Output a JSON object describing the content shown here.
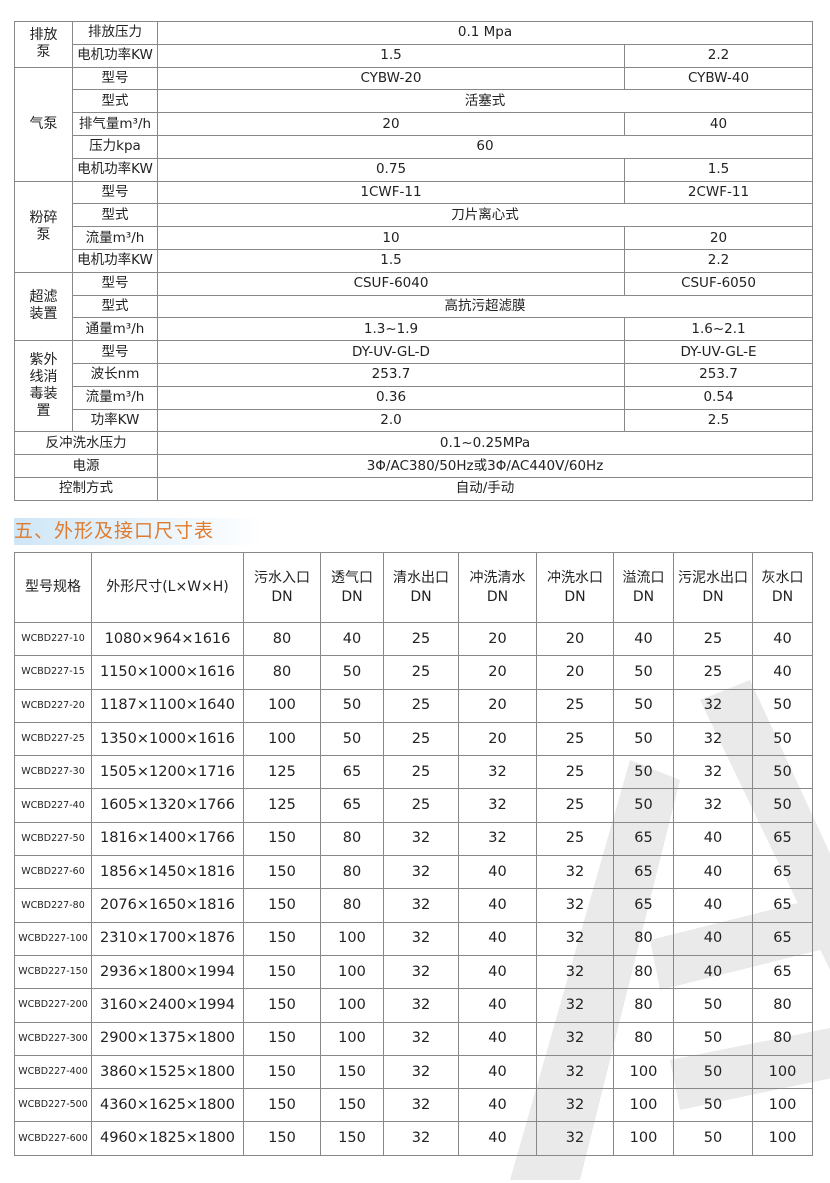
{
  "spec_table": {
    "rows": [
      {
        "group": "排放泵",
        "param": "排放压力",
        "merged": "0.1 Mpa"
      },
      {
        "param": "电机功率KW",
        "a": "1.5",
        "b": "2.2"
      },
      {
        "group": "气泵",
        "param": "型号",
        "a": "CYBW-20",
        "b": "CYBW-40"
      },
      {
        "param": "型式",
        "merged": "活塞式"
      },
      {
        "param": "排气量m³/h",
        "a": "20",
        "b": "40"
      },
      {
        "param": "压力kpa",
        "merged": "60"
      },
      {
        "param": "电机功率KW",
        "a": "0.75",
        "b": "1.5"
      },
      {
        "group": "粉碎泵",
        "param": "型号",
        "a": "1CWF-11",
        "b": "2CWF-11"
      },
      {
        "param": "型式",
        "merged": "刀片离心式"
      },
      {
        "param": "流量m³/h",
        "a": "10",
        "b": "20"
      },
      {
        "param": "电机功率KW",
        "a": "1.5",
        "b": "2.2"
      },
      {
        "group": "超滤装置",
        "param": "型号",
        "a": "CSUF-6040",
        "b": "CSUF-6050"
      },
      {
        "param": "型式",
        "merged": "高抗污超滤膜"
      },
      {
        "param": "通量m³/h",
        "a": "1.3~1.9",
        "b": "1.6~2.1"
      },
      {
        "group": "紫外线消毒装置",
        "param": "型号",
        "a": "DY-UV-GL-D",
        "b": "DY-UV-GL-E"
      },
      {
        "param": "波长nm",
        "a": "253.7",
        "b": "253.7"
      },
      {
        "param": "流量m³/h",
        "a": "0.36",
        "b": "0.54"
      },
      {
        "param": "功率KW",
        "a": "2.0",
        "b": "2.5"
      }
    ],
    "groups": {
      "排放泵": 2,
      "气泵": 5,
      "粉碎泵": 4,
      "超滤装置": 3,
      "紫外线消毒装置": 4
    },
    "footer_rows": [
      {
        "label": "反冲洗水压力",
        "value": "0.1~0.25MPa"
      },
      {
        "label": "电源",
        "value": "3Φ/AC380/50Hz或3Φ/AC440V/60Hz"
      },
      {
        "label": "控制方式",
        "value": "自动/手动"
      }
    ]
  },
  "section_title": "五、外形及接口尺寸表",
  "dims_table": {
    "headers": [
      [
        "型号规格"
      ],
      [
        "外形尺寸(L×W×H)"
      ],
      [
        "污水入口",
        "DN"
      ],
      [
        "透气口",
        "DN"
      ],
      [
        "清水出口",
        "DN"
      ],
      [
        "冲洗清水",
        "DN"
      ],
      [
        "冲洗水口",
        "DN"
      ],
      [
        "溢流口",
        "DN"
      ],
      [
        "污泥水出口",
        "DN"
      ],
      [
        "灰水口",
        "DN"
      ]
    ],
    "rows": [
      [
        "WCBD227-10",
        "1080×964×1616",
        "80",
        "40",
        "25",
        "20",
        "20",
        "40",
        "25",
        "40"
      ],
      [
        "WCBD227-15",
        "1150×1000×1616",
        "80",
        "50",
        "25",
        "20",
        "20",
        "50",
        "25",
        "40"
      ],
      [
        "WCBD227-20",
        "1187×1100×1640",
        "100",
        "50",
        "25",
        "20",
        "25",
        "50",
        "32",
        "50"
      ],
      [
        "WCBD227-25",
        "1350×1000×1616",
        "100",
        "50",
        "25",
        "20",
        "25",
        "50",
        "32",
        "50"
      ],
      [
        "WCBD227-30",
        "1505×1200×1716",
        "125",
        "65",
        "25",
        "32",
        "25",
        "50",
        "32",
        "50"
      ],
      [
        "WCBD227-40",
        "1605×1320×1766",
        "125",
        "65",
        "25",
        "32",
        "25",
        "50",
        "32",
        "50"
      ],
      [
        "WCBD227-50",
        "1816×1400×1766",
        "150",
        "80",
        "32",
        "32",
        "25",
        "65",
        "40",
        "65"
      ],
      [
        "WCBD227-60",
        "1856×1450×1816",
        "150",
        "80",
        "32",
        "40",
        "32",
        "65",
        "40",
        "65"
      ],
      [
        "WCBD227-80",
        "2076×1650×1816",
        "150",
        "80",
        "32",
        "40",
        "32",
        "65",
        "40",
        "65"
      ],
      [
        "WCBD227-100",
        "2310×1700×1876",
        "150",
        "100",
        "32",
        "40",
        "32",
        "80",
        "40",
        "65"
      ],
      [
        "WCBD227-150",
        "2936×1800×1994",
        "150",
        "100",
        "32",
        "40",
        "32",
        "80",
        "40",
        "65"
      ],
      [
        "WCBD227-200",
        "3160×2400×1994",
        "150",
        "100",
        "32",
        "40",
        "32",
        "80",
        "50",
        "80"
      ],
      [
        "WCBD227-300",
        "2900×1375×1800",
        "150",
        "100",
        "32",
        "40",
        "32",
        "80",
        "50",
        "80"
      ],
      [
        "WCBD227-400",
        "3860×1525×1800",
        "150",
        "150",
        "32",
        "40",
        "32",
        "100",
        "50",
        "100"
      ],
      [
        "WCBD227-500",
        "4360×1625×1800",
        "150",
        "150",
        "32",
        "40",
        "32",
        "100",
        "50",
        "100"
      ],
      [
        "WCBD227-600",
        "4960×1825×1800",
        "150",
        "150",
        "32",
        "40",
        "32",
        "100",
        "50",
        "100"
      ]
    ]
  },
  "colors": {
    "title": "#e07b2e",
    "title_bg": "#cfe6f7",
    "border": "#888888"
  }
}
